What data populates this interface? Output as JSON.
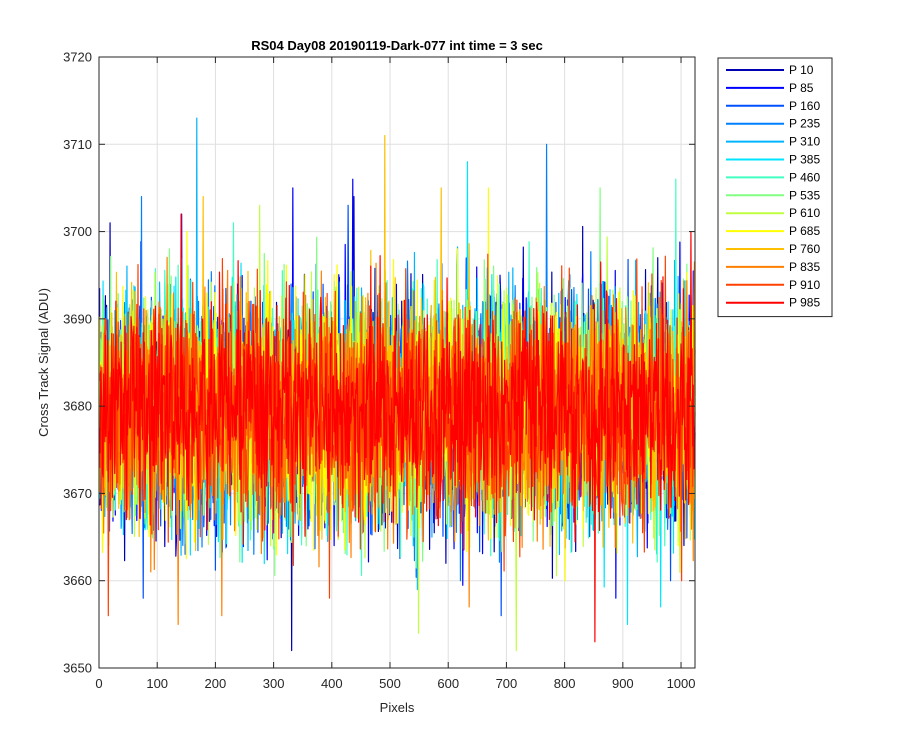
{
  "chart_data": {
    "type": "line",
    "title": "RS04 Day08 20190119-Dark-077 int time = 3 sec",
    "xlabel": "Pixels",
    "ylabel": "Cross Track Signal (ADU)",
    "xlim": [
      0,
      1024
    ],
    "ylim": [
      3650,
      3720
    ],
    "xticks": [
      0,
      100,
      200,
      300,
      400,
      500,
      600,
      700,
      800,
      900,
      1000
    ],
    "yticks": [
      3650,
      3660,
      3670,
      3680,
      3690,
      3700,
      3710,
      3720
    ],
    "grid": true,
    "legend_position": "outside-right",
    "n_points": 1024,
    "series": [
      {
        "name": "P 10",
        "color": "#0000b3",
        "mean": 3679.5,
        "noise": 6.5,
        "spikes": [
          [
            330,
            3652
          ],
          [
            18,
            3701
          ],
          [
            437,
            3704
          ],
          [
            595,
            3662
          ]
        ]
      },
      {
        "name": "P 85",
        "color": "#0000ff",
        "mean": 3679.5,
        "noise": 6.5,
        "spikes": [
          [
            332,
            3705
          ],
          [
            141,
            3702
          ],
          [
            887,
            3658
          ],
          [
            435,
            3706
          ]
        ]
      },
      {
        "name": "P 160",
        "color": "#0050ff",
        "mean": 3679.5,
        "noise": 6.5,
        "spikes": [
          [
            75,
            3658
          ],
          [
            427,
            3703
          ],
          [
            690,
            3656
          ],
          [
            981,
            3660
          ]
        ]
      },
      {
        "name": "P 235",
        "color": "#0080ff",
        "mean": 3679.5,
        "noise": 6.5,
        "spikes": [
          [
            768,
            3710
          ],
          [
            72,
            3704
          ],
          [
            298,
            3668
          ],
          [
            620,
            3660
          ]
        ]
      },
      {
        "name": "P 310",
        "color": "#00b4ff",
        "mean": 3679.5,
        "noise": 6.5,
        "spikes": [
          [
            167,
            3713
          ],
          [
            546,
            3659
          ],
          [
            790,
            3663
          ]
        ]
      },
      {
        "name": "P 385",
        "color": "#00e5ff",
        "mean": 3679.5,
        "noise": 6.5,
        "spikes": [
          [
            632,
            3708
          ],
          [
            907,
            3655
          ],
          [
            964,
            3657
          ]
        ]
      },
      {
        "name": "P 460",
        "color": "#40ffc0",
        "mean": 3679.5,
        "noise": 6.5,
        "spikes": [
          [
            990,
            3706
          ],
          [
            230,
            3701
          ],
          [
            540,
            3665
          ]
        ]
      },
      {
        "name": "P 535",
        "color": "#80ff80",
        "mean": 3679.5,
        "noise": 6.5,
        "spikes": [
          [
            860,
            3705
          ],
          [
            120,
            3698
          ],
          [
            355,
            3664
          ]
        ]
      },
      {
        "name": "P 610",
        "color": "#c0ff40",
        "mean": 3679.5,
        "noise": 6.5,
        "spikes": [
          [
            716,
            3652
          ],
          [
            548,
            3654
          ],
          [
            275,
            3703
          ]
        ]
      },
      {
        "name": "P 685",
        "color": "#ffff00",
        "mean": 3679.5,
        "noise": 6.5,
        "spikes": [
          [
            668,
            3705
          ],
          [
            150,
            3700
          ],
          [
            800,
            3660
          ]
        ]
      },
      {
        "name": "P 760",
        "color": "#ffc000",
        "mean": 3679.5,
        "noise": 6.5,
        "spikes": [
          [
            490,
            3711
          ],
          [
            178,
            3704
          ],
          [
            587,
            3705
          ]
        ]
      },
      {
        "name": "P 835",
        "color": "#ff8000",
        "mean": 3679.5,
        "noise": 6.5,
        "spikes": [
          [
            135,
            3655
          ],
          [
            210,
            3656
          ],
          [
            635,
            3657
          ]
        ]
      },
      {
        "name": "P 910",
        "color": "#ff4000",
        "mean": 3679.5,
        "noise": 6.5,
        "spikes": [
          [
            15,
            3656
          ],
          [
            395,
            3658
          ],
          [
            1000,
            3660
          ]
        ]
      },
      {
        "name": "P 985",
        "color": "#ff0000",
        "mean": 3679.5,
        "noise": 6.0,
        "spikes": [
          [
            851,
            3653
          ],
          [
            1016,
            3700
          ],
          [
            140,
            3702
          ]
        ]
      }
    ]
  }
}
